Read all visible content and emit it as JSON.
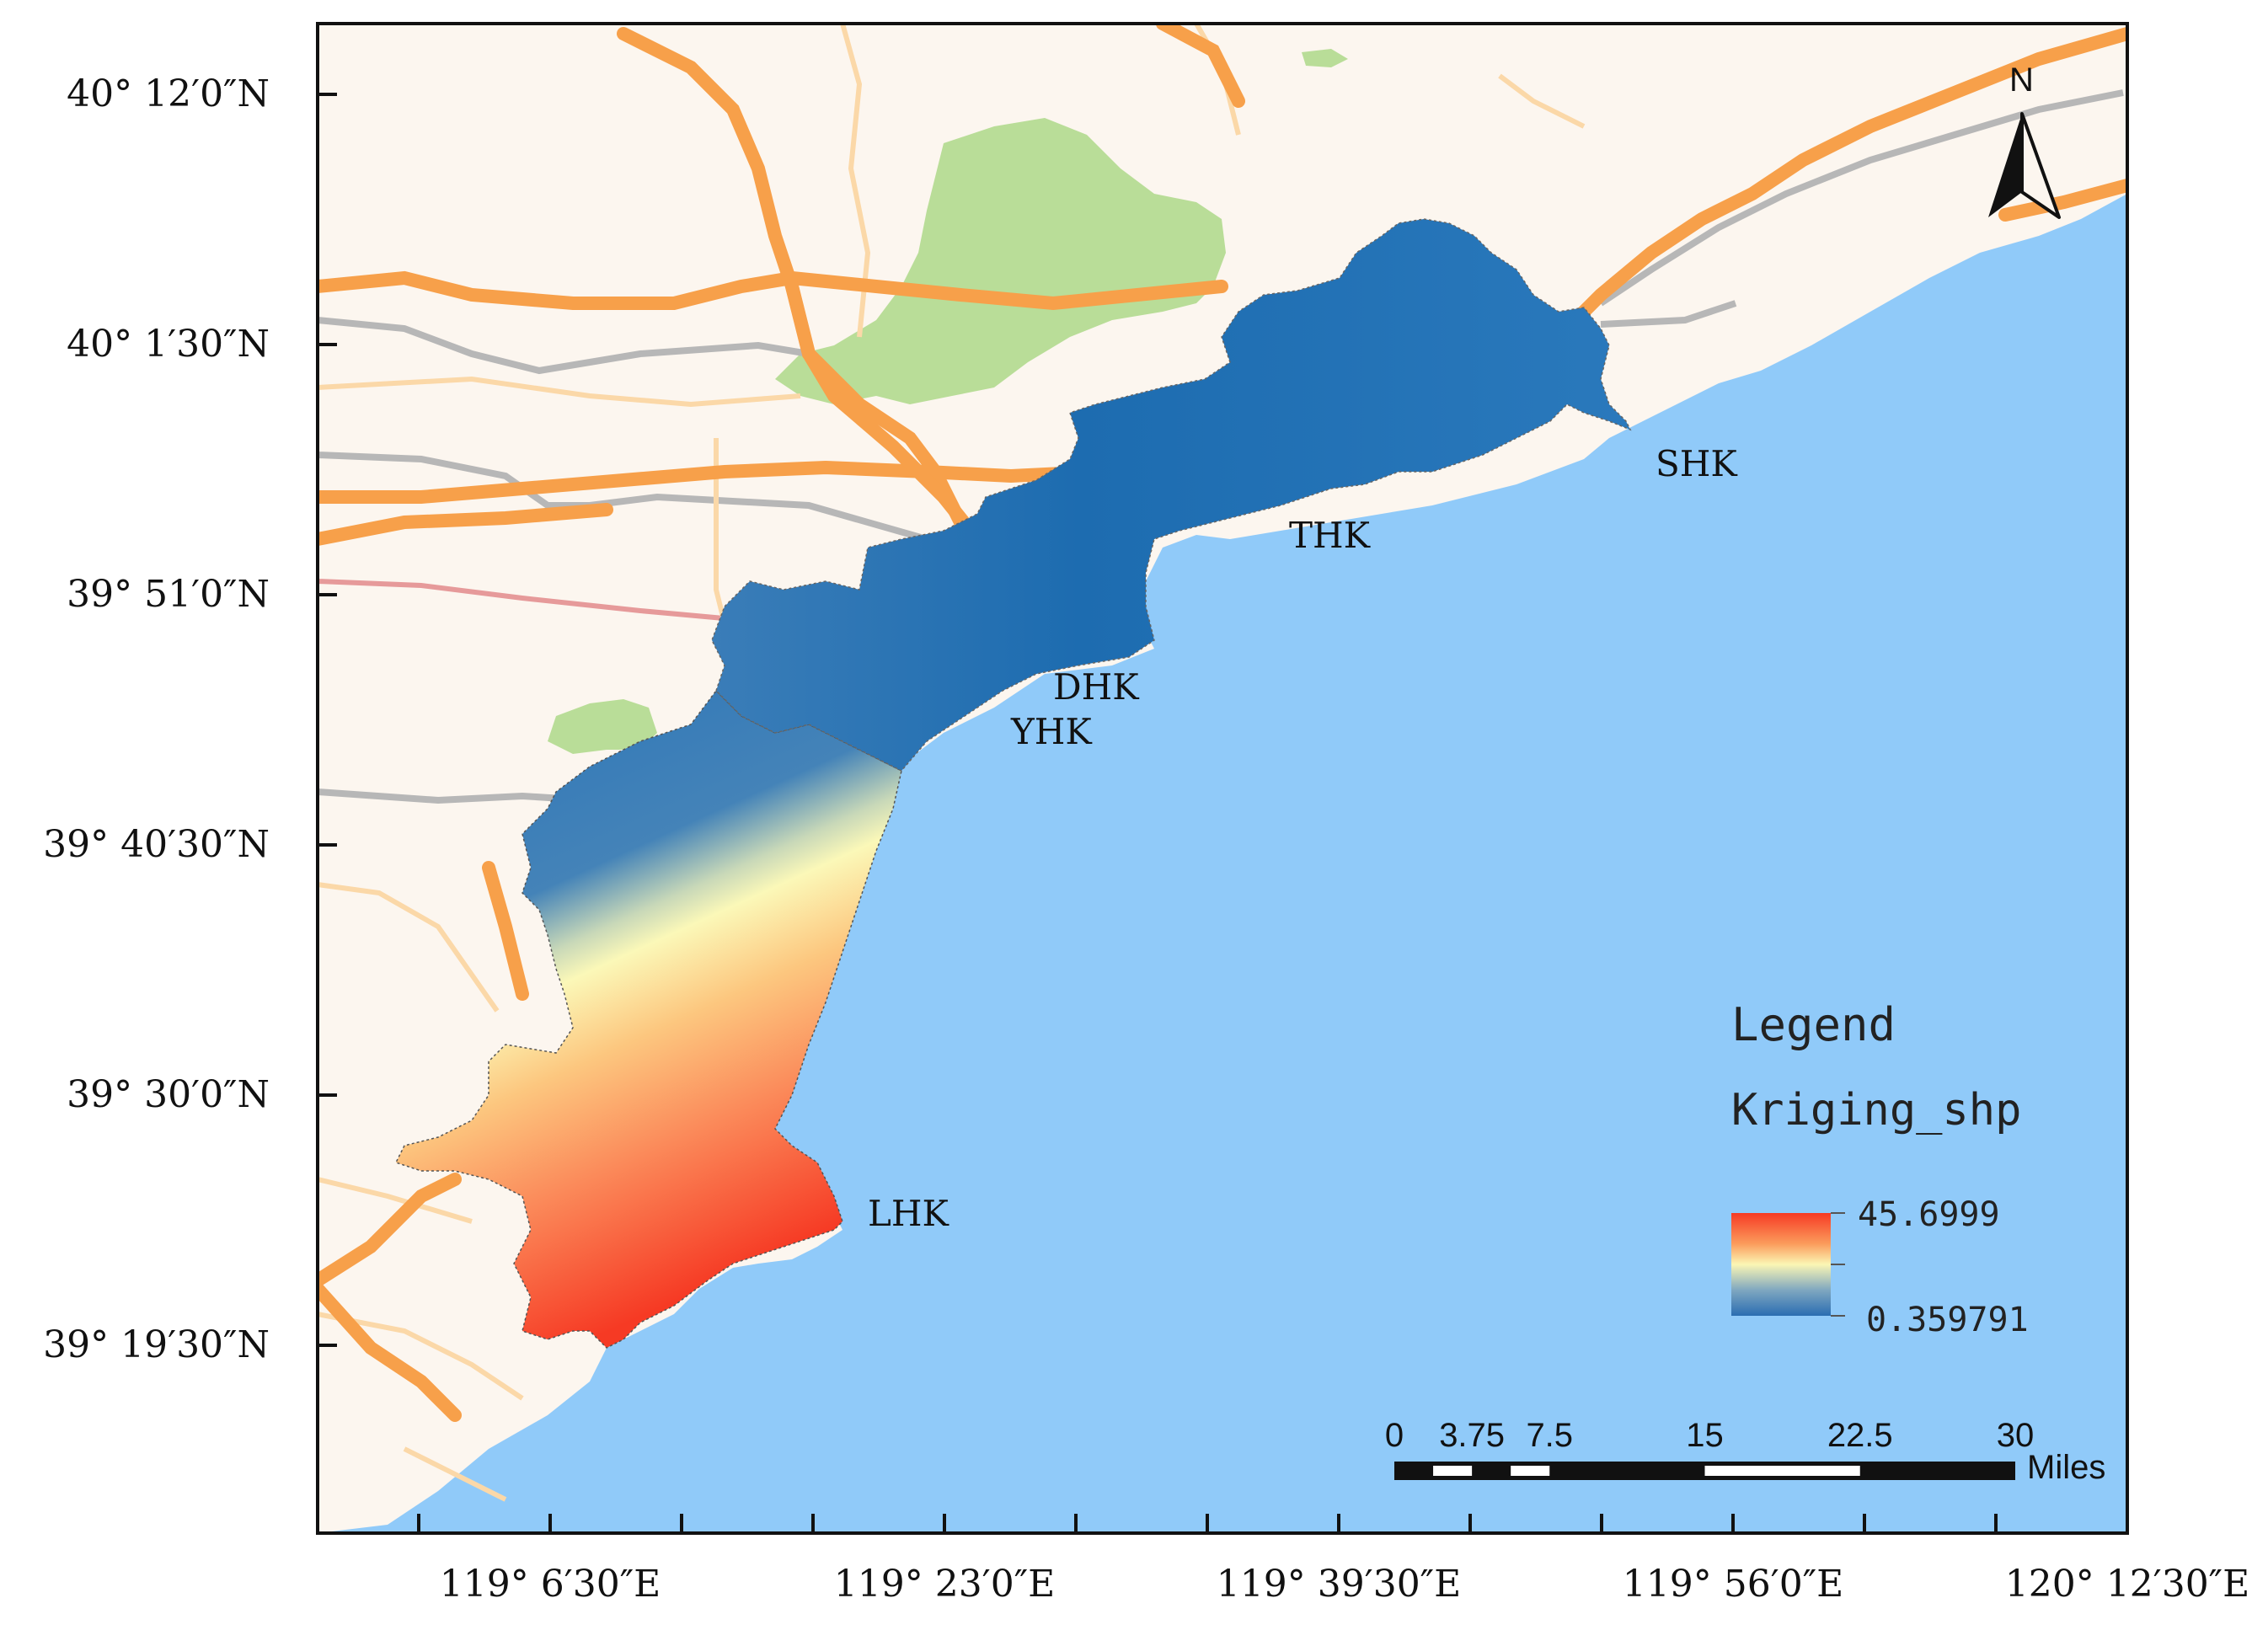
{
  "map": {
    "lat_labels": [
      {
        "text": "40° 12′0″N"
      },
      {
        "text": "40° 1′30″N"
      },
      {
        "text": "39° 51′0″N"
      },
      {
        "text": "39° 40′30″N"
      },
      {
        "text": "39° 30′0″N"
      },
      {
        "text": "39° 19′30″N"
      }
    ],
    "lon_labels": [
      {
        "text": "119° 6′30″E"
      },
      {
        "text": "119° 23′0″E"
      },
      {
        "text": "119° 39′30″E"
      },
      {
        "text": "119° 56′0″E"
      },
      {
        "text": "120° 12′30″E"
      }
    ],
    "places": [
      {
        "id": "SHK",
        "label": "SHK"
      },
      {
        "id": "THK",
        "label": "THK"
      },
      {
        "id": "DHK",
        "label": "DHK"
      },
      {
        "id": "YHK",
        "label": "YHK"
      },
      {
        "id": "LHK",
        "label": "LHK"
      }
    ],
    "north_arrow": {
      "label": "N",
      "icon": "north-arrow-icon"
    },
    "legend": {
      "title": "Legend",
      "layer": "Kriging_shp",
      "max": "45.6999",
      "min": "0.359791",
      "colors": {
        "high": "#f63a24",
        "mid": "#fbf6b4",
        "low": "#2a6db2"
      }
    },
    "scale_bar": {
      "ticks": [
        "0",
        "3.75",
        "7.5",
        "15",
        "22.5",
        "30"
      ],
      "unit": "Miles"
    },
    "colors": {
      "sea": "#90caf9",
      "land": "#fcf6ef",
      "park": "#b9dd98",
      "highway": "#f7a04a",
      "road": "#fbd8a8",
      "rail": "#b7b7b7"
    }
  }
}
